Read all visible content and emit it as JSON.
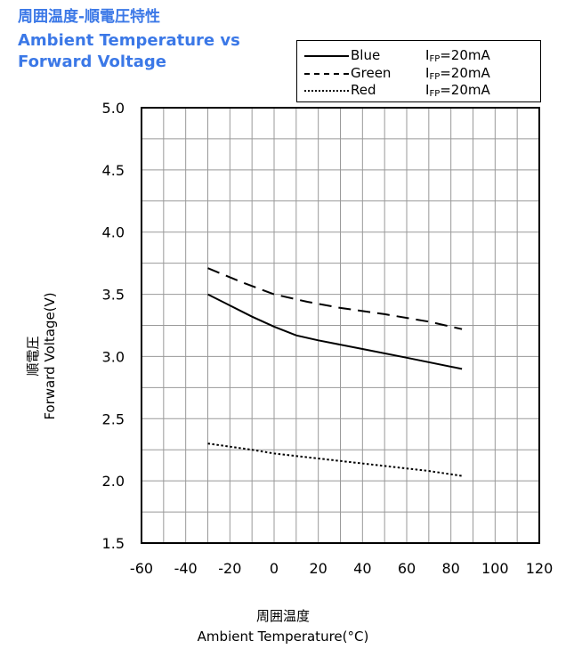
{
  "chart_data": {
    "type": "line",
    "title_jp": "周囲温度-順電圧特性",
    "title_en_line1": "Ambient Temperature vs",
    "title_en_line2": "Forward Voltage",
    "xlabel_jp": "周囲温度",
    "xlabel": "Ambient Temperature(°C)",
    "ylabel_jp": "順電圧",
    "ylabel": "Forward Voltage(V)",
    "xlim": [
      -60,
      120
    ],
    "ylim": [
      1.5,
      5.0
    ],
    "x_ticks": [
      "-60",
      "-40",
      "-20",
      "0",
      "20",
      "40",
      "60",
      "80",
      "100",
      "120"
    ],
    "y_ticks": [
      "5.0",
      "4.5",
      "4.0",
      "3.5",
      "3.0",
      "2.5",
      "2.0",
      "1.5"
    ],
    "grid": true,
    "legend_position": "top-right",
    "series": [
      {
        "name": "Blue",
        "condition_prefix": "I",
        "condition_sub": "FP",
        "condition_suffix": "=20mA",
        "style": "solid",
        "x": [
          -30,
          -20,
          -10,
          0,
          10,
          20,
          40,
          60,
          85
        ],
        "y": [
          3.5,
          3.41,
          3.32,
          3.24,
          3.17,
          3.13,
          3.06,
          2.99,
          2.9
        ]
      },
      {
        "name": "Green",
        "condition_prefix": "I",
        "condition_sub": "FP",
        "condition_suffix": "=20mA",
        "style": "dashed",
        "x": [
          -30,
          -15,
          0,
          15,
          30,
          50,
          70,
          85
        ],
        "y": [
          3.71,
          3.6,
          3.5,
          3.44,
          3.39,
          3.34,
          3.28,
          3.22
        ]
      },
      {
        "name": "Red",
        "condition_prefix": "I",
        "condition_sub": "FP",
        "condition_suffix": "=20mA",
        "style": "dotted",
        "x": [
          -30,
          -10,
          0,
          10,
          30,
          50,
          70,
          85
        ],
        "y": [
          2.3,
          2.25,
          2.22,
          2.2,
          2.16,
          2.12,
          2.08,
          2.04
        ]
      }
    ]
  }
}
